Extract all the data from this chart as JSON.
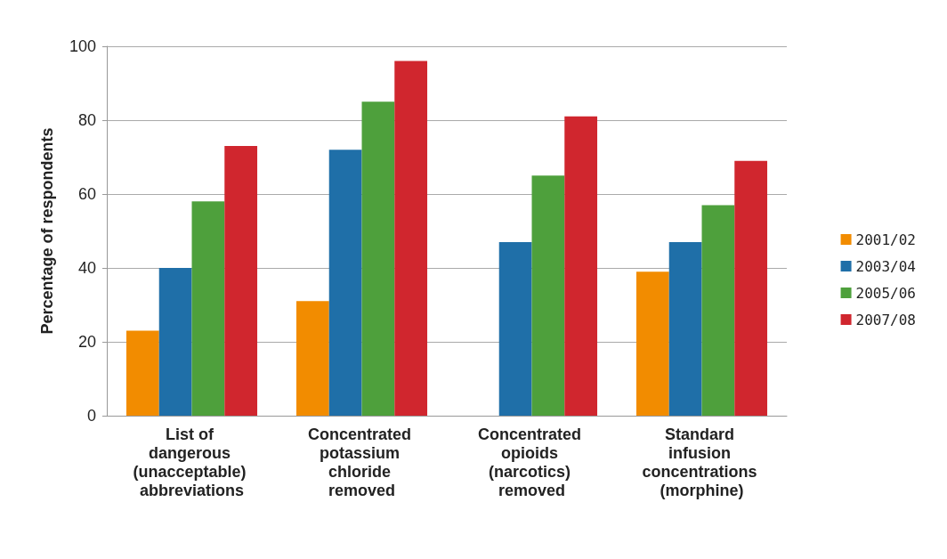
{
  "chart_data": {
    "type": "bar",
    "ylabel": "Percentage of respondents",
    "categories": [
      "List of dangerous (unacceptable) abbreviations",
      "Concentrated potassium chloride removed",
      "Concentrated opioids (narcotics) removed",
      "Standard infusion concentrations (morphine)"
    ],
    "series": [
      {
        "name": "2001/02",
        "color": "#f28c00",
        "values": [
          23,
          31,
          null,
          39
        ]
      },
      {
        "name": "2003/04",
        "color": "#1f6fa8",
        "values": [
          40,
          72,
          47,
          47
        ]
      },
      {
        "name": "2005/06",
        "color": "#4ea03c",
        "values": [
          58,
          85,
          65,
          57
        ]
      },
      {
        "name": "2007/08",
        "color": "#d0262e",
        "values": [
          73,
          96,
          81,
          69
        ]
      }
    ],
    "ylim": [
      0,
      100
    ],
    "yticks": [
      0,
      20,
      40,
      60,
      80,
      100
    ],
    "grid": "y",
    "legend": "right"
  }
}
